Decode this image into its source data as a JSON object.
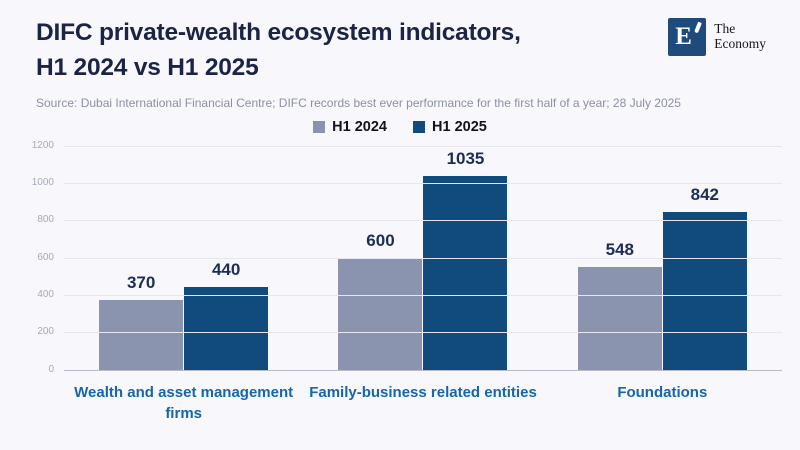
{
  "header": {
    "title_lines": [
      "DIFC private-wealth ecosystem indicators,",
      "H1 2024 vs H1 2025"
    ],
    "source": "Source: Dubai International Financial Centre; DIFC records best ever performance for the first half of a year; 28 July 2025"
  },
  "logo": {
    "letter": "E",
    "name_lines": [
      "The",
      "Economy"
    ],
    "box_color": "#1e4b7a"
  },
  "chart_data": {
    "type": "bar",
    "title": "DIFC private-wealth ecosystem indicators, H1 2024 vs H1 2025",
    "categories": [
      "Wealth and asset management firms",
      "Family-business related entities",
      "Foundations"
    ],
    "series": [
      {
        "name": "H1 2024",
        "color": "#8a94ae",
        "values": [
          370,
          600,
          548
        ]
      },
      {
        "name": "H1 2025",
        "color": "#114a7d",
        "values": [
          440,
          1035,
          842
        ]
      }
    ],
    "xlabel": "",
    "ylabel": "",
    "ylim": [
      0,
      1200
    ],
    "yticks": [
      0,
      200,
      400,
      600,
      800,
      1000,
      1200
    ],
    "grid": true,
    "legend_position": "top-center",
    "data_labels": true
  },
  "colors": {
    "background": "#f7f7fc",
    "title_text": "#1b2347",
    "source_text": "#8c90a4",
    "category_text": "#1666ae",
    "data_label_text": "#1c2e54",
    "gridline": "#e5e6ef",
    "baseline": "#b7bac7",
    "ytick_text": "#a6aaba"
  }
}
